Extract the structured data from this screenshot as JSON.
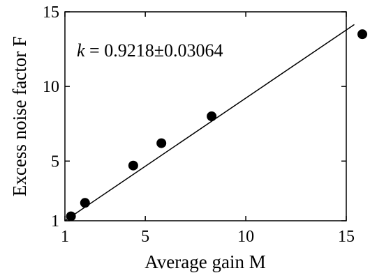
{
  "chart_data": {
    "type": "scatter",
    "xlabel": "Average gain M",
    "ylabel": "Excess noise factor F",
    "xlim": [
      1,
      15
    ],
    "ylim": [
      1,
      15
    ],
    "x_ticks": [
      1,
      5,
      10,
      15
    ],
    "y_ticks": [
      1,
      5,
      10,
      15
    ],
    "grid": false,
    "series": [
      {
        "type": "scatter",
        "color": "#000000",
        "x": [
          1.3,
          2.0,
          4.4,
          5.8,
          8.3,
          15.8
        ],
        "y": [
          1.3,
          2.2,
          4.7,
          6.2,
          8.0,
          13.5
        ]
      },
      {
        "type": "line",
        "color": "#000000",
        "x": [
          1.0,
          15.4
        ],
        "y": [
          1.0,
          14.15
        ]
      }
    ],
    "annotation": {
      "symbol": "k",
      "text": " = 0.9218",
      "pm": "±",
      "err": "0.03064"
    }
  }
}
